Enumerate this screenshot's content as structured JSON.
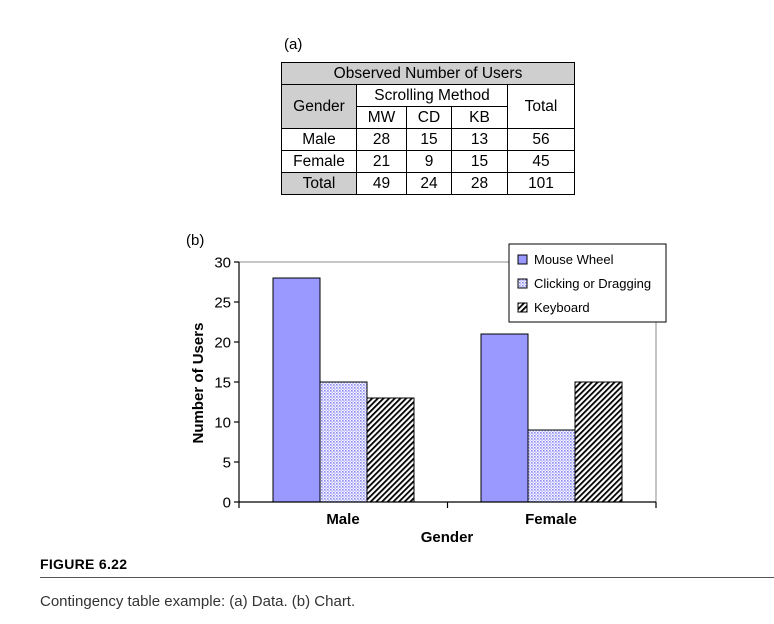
{
  "table": {
    "label": "(a)",
    "title": "Observed Number of Users",
    "gender_header": "Gender",
    "method_header": "Scrolling Method",
    "total_header": "Total",
    "columns": [
      "MW",
      "CD",
      "KB"
    ],
    "rows": [
      {
        "label": "Male",
        "values": [
          "28",
          "15",
          "13"
        ],
        "total": "56"
      },
      {
        "label": "Female",
        "values": [
          "21",
          "9",
          "15"
        ],
        "total": "45"
      },
      {
        "label": "Total",
        "values": [
          "49",
          "24",
          "28"
        ],
        "total": "101"
      }
    ]
  },
  "chart_label": "(b)",
  "chart_data": {
    "type": "bar",
    "categories": [
      "Male",
      "Female"
    ],
    "series": [
      {
        "name": "Mouse Wheel",
        "values": [
          28,
          21
        ],
        "color": "#9999ff",
        "pattern": "solid"
      },
      {
        "name": "Clicking or Dragging",
        "values": [
          15,
          9
        ],
        "color": "#9999ff",
        "pattern": "dots"
      },
      {
        "name": "Keyboard",
        "values": [
          13,
          15
        ],
        "color": "#000000",
        "pattern": "diagonal-hatch"
      }
    ],
    "xlabel": "Gender",
    "ylabel": "Number of Users",
    "ylim": [
      0,
      30
    ],
    "yticks": [
      0,
      5,
      10,
      15,
      20,
      25,
      30
    ],
    "grid": false,
    "legend": "top-right"
  },
  "figure": {
    "label": "FIGURE 6.22",
    "caption": "Contingency table example: (a) Data. (b) Chart."
  }
}
